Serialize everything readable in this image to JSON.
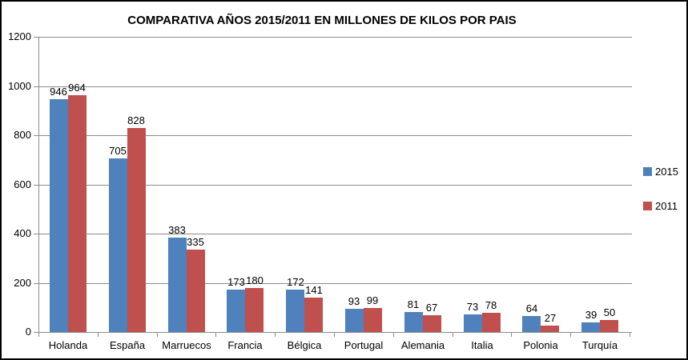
{
  "frame": {
    "background": "#FFFFFF",
    "border_color": "#000000"
  },
  "colors": {
    "series_2015": "#4F81BD",
    "series_2011": "#C0504D",
    "gridline": "#8C8C8C",
    "text": "#000000"
  },
  "legend": {
    "position": "right",
    "items": [
      {
        "label": "2015",
        "color": "#4F81BD"
      },
      {
        "label": "2011",
        "color": "#C0504D"
      }
    ]
  },
  "chart_data": {
    "type": "bar",
    "title": "COMPARATIVA AÑOS 2015/2011 EN MILLONES DE KILOS POR PAIS",
    "categories": [
      "Holanda",
      "España",
      "Marruecos",
      "Francia",
      "Bélgica",
      "Portugal",
      "Alemania",
      "Italia",
      "Polonia",
      "Turquía"
    ],
    "series": [
      {
        "name": "2015",
        "color": "#4F81BD",
        "values": [
          946,
          705,
          383,
          173,
          172,
          93,
          81,
          73,
          64,
          39
        ]
      },
      {
        "name": "2011",
        "color": "#C0504D",
        "values": [
          964,
          828,
          335,
          180,
          141,
          99,
          67,
          78,
          27,
          50
        ]
      }
    ],
    "xlabel": "",
    "ylabel": "",
    "ylim": [
      0,
      1200
    ],
    "ytick_interval": 200,
    "yticks": [
      0,
      200,
      400,
      600,
      800,
      1000,
      1200
    ],
    "grid": true,
    "legend_position": "right",
    "data_labels": true
  }
}
